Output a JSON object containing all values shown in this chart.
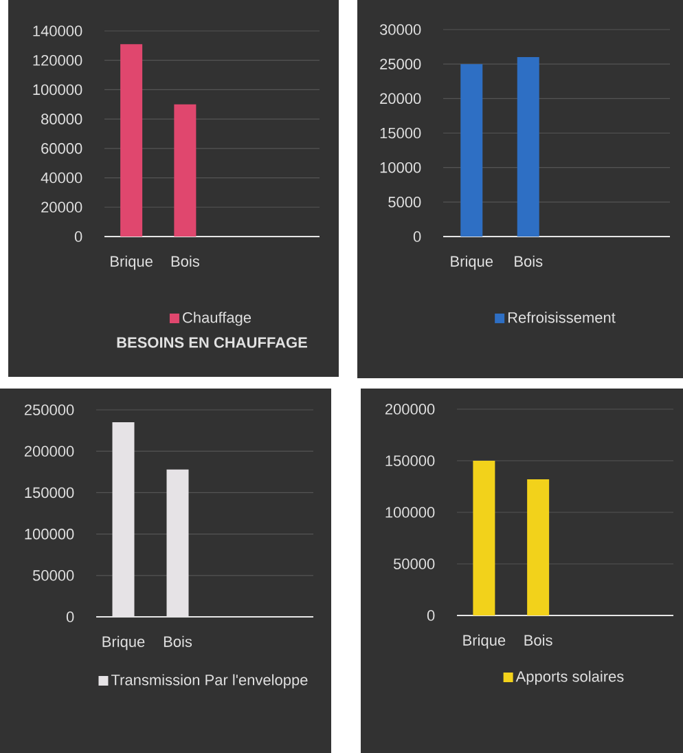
{
  "chart_data": [
    {
      "type": "bar",
      "title": "BESOINS EN CHAUFFAGE",
      "categories": [
        "Brique",
        "Bois",
        null,
        null
      ],
      "series": [
        {
          "name": "Chauffage",
          "color": "#e0476e",
          "values": [
            131000,
            90000,
            null,
            null
          ]
        }
      ],
      "ylim": [
        0,
        140000
      ],
      "yticks": [
        0,
        20000,
        40000,
        60000,
        80000,
        100000,
        120000,
        140000
      ],
      "grid": "y",
      "legend": "bottom"
    },
    {
      "type": "bar",
      "categories": [
        "Brique",
        "Bois",
        null,
        null
      ],
      "series": [
        {
          "name": "Refroisissement",
          "color": "#2e6fc4",
          "values": [
            25000,
            26000,
            null,
            null
          ]
        }
      ],
      "ylim": [
        0,
        30000
      ],
      "yticks": [
        0,
        5000,
        10000,
        15000,
        20000,
        25000,
        30000
      ],
      "grid": "y",
      "legend": "bottom"
    },
    {
      "type": "bar",
      "categories": [
        "Brique",
        "Bois",
        null,
        null
      ],
      "series": [
        {
          "name": "Transmission Par l'enveloppe",
          "color": "#e6e3e6",
          "values": [
            235000,
            178000,
            null,
            null
          ]
        }
      ],
      "ylim": [
        0,
        250000
      ],
      "yticks": [
        0,
        50000,
        100000,
        150000,
        200000,
        250000
      ],
      "grid": "y",
      "legend": "bottom"
    },
    {
      "type": "bar",
      "categories": [
        "Brique",
        "Bois",
        null,
        null
      ],
      "series": [
        {
          "name": "Apports solaires",
          "color": "#f2d21b",
          "values": [
            150000,
            132000,
            null,
            null
          ]
        }
      ],
      "ylim": [
        0,
        200000
      ],
      "yticks": [
        0,
        50000,
        100000,
        150000,
        200000
      ],
      "grid": "y",
      "legend": "bottom"
    }
  ]
}
